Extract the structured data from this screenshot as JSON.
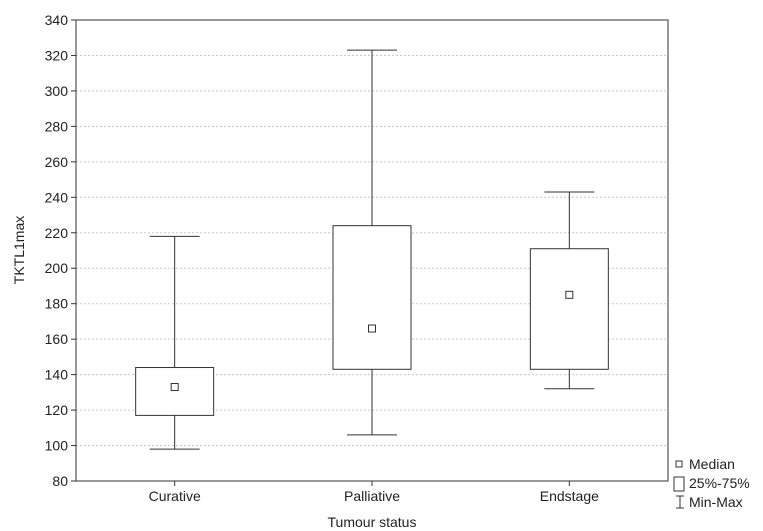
{
  "chart_data": {
    "type": "box",
    "xlabel": "Tumour status",
    "ylabel": "TKTL1max",
    "ylim": [
      80,
      340
    ],
    "yticks": [
      80,
      100,
      120,
      140,
      160,
      180,
      200,
      220,
      240,
      260,
      280,
      300,
      320,
      340
    ],
    "grid": true,
    "categories": [
      "Curative",
      "Palliative",
      "Endstage"
    ],
    "boxes": [
      {
        "category": "Curative",
        "min": 98,
        "q1": 117,
        "median": 133,
        "q3": 144,
        "max": 218
      },
      {
        "category": "Palliative",
        "min": 106,
        "q1": 143,
        "median": 166,
        "q3": 224,
        "max": 323
      },
      {
        "category": "Endstage",
        "min": 132,
        "q1": 143,
        "median": 185,
        "q3": 211,
        "max": 243
      }
    ],
    "legend": {
      "position": "bottom-right",
      "items": [
        {
          "symbol": "small-square",
          "label": "Median"
        },
        {
          "symbol": "box",
          "label": "25%-75%"
        },
        {
          "symbol": "whisker",
          "label": "Min-Max"
        }
      ]
    }
  }
}
